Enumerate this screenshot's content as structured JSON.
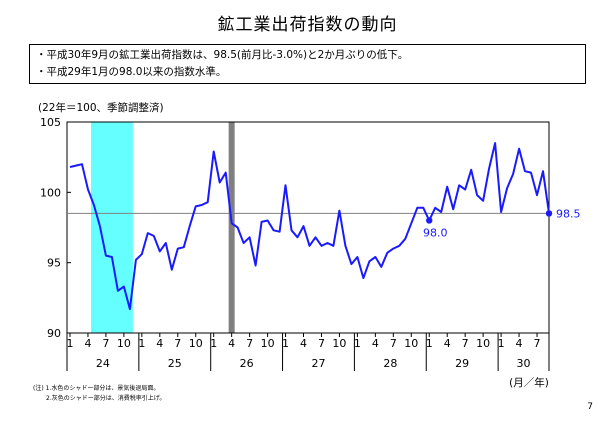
{
  "title": "鉱工業出荷指数の動向",
  "summary": [
    "・平成30年9月の鉱工業出荷指数は、98.5(前月比-3.0%)と2か月ぶりの低下。",
    "・平成29年1月の98.0以来の指数水準。"
  ],
  "unit_label": "(22年＝100、季節調整済)",
  "notes": [
    "(注) 1.水色のシャドー部分は、景気後退局面。",
    "2.灰色のシャドー部分は、消費税率引上げ。"
  ],
  "page_number": "7",
  "colors": {
    "line": "#1a1aff",
    "reference_line": "#808080",
    "recession_shade": "#66ffff",
    "tax_shade": "#808080"
  },
  "chart_data": {
    "type": "line",
    "title": "",
    "xlabel": "(月／年)",
    "ylabel": "",
    "ylim": [
      90,
      105
    ],
    "yticks": [
      90,
      95,
      100,
      105
    ],
    "month_tick_labels": [
      "1",
      "4",
      "7",
      "10"
    ],
    "year_labels": [
      "24",
      "25",
      "26",
      "27",
      "28",
      "29",
      "30"
    ],
    "reference_line": 98.5,
    "shaded_regions": [
      {
        "kind": "recession",
        "start_index": 4,
        "end_index": 10
      },
      {
        "kind": "consumption_tax_hike",
        "index": 27
      }
    ],
    "annotations": [
      {
        "text": "98.0",
        "index": 60,
        "value": 98.0
      },
      {
        "text": "98.5",
        "index": 80,
        "value": 98.5
      }
    ],
    "series": [
      {
        "values": [
          101.8,
          101.9,
          102.0,
          100.2,
          99.1,
          97.6,
          95.5,
          95.4,
          93.0,
          93.3,
          91.7,
          95.2,
          95.6,
          97.1,
          96.9,
          95.8,
          96.4,
          94.5,
          96.0,
          96.1,
          97.6,
          99.0,
          99.1,
          99.3,
          102.9,
          100.7,
          101.4,
          97.8,
          97.5,
          96.4,
          96.8,
          94.8,
          97.9,
          98.0,
          97.3,
          97.2,
          100.5,
          97.3,
          96.8,
          97.6,
          96.2,
          96.8,
          96.2,
          96.4,
          96.2,
          98.7,
          96.2,
          94.9,
          95.4,
          93.9,
          95.1,
          95.4,
          94.7,
          95.7,
          96.0,
          96.2,
          96.7,
          97.8,
          98.9,
          98.9,
          98.0,
          98.9,
          98.6,
          100.4,
          98.8,
          100.5,
          100.2,
          101.6,
          99.8,
          99.4,
          101.7,
          103.5,
          98.6,
          100.3,
          101.3,
          103.1,
          101.5,
          101.4,
          99.8,
          101.5,
          98.5
        ]
      }
    ]
  }
}
